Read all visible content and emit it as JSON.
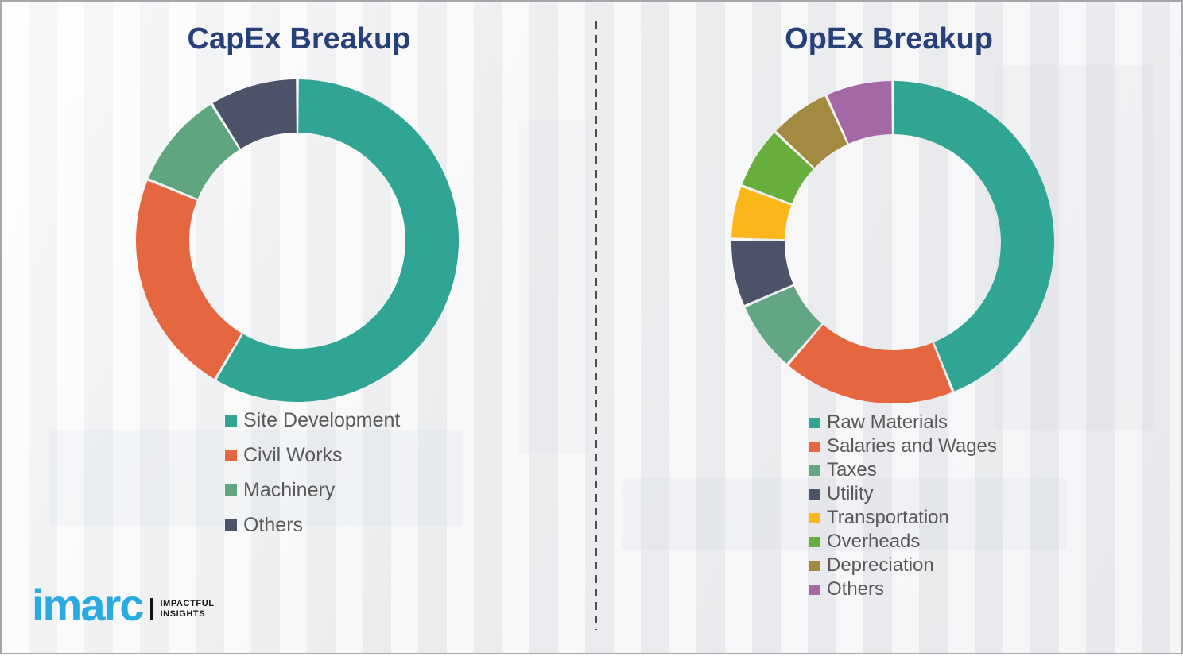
{
  "colors": {
    "background": "#f0f0f1",
    "frame_border": "#a6a6aa",
    "title_text": "#27407a",
    "legend_text": "#595959",
    "divider": "#4d4d4d",
    "brand_blue": "#29aae1",
    "tagline_black": "#1c1c1c"
  },
  "logo": {
    "brand": "imarc",
    "tagline_line1": "IMPACTFUL",
    "tagline_line2": "INSIGHTS"
  },
  "chart_data": [
    {
      "type": "pie",
      "subtype": "donut",
      "title": "CapEx Breakup",
      "labels": [
        "Site Development",
        "Civil Works",
        "Machinery",
        "Others"
      ],
      "values": [
        58.5,
        22.7,
        9.9,
        8.9
      ],
      "colors": [
        "#30a594",
        "#e5673f",
        "#5fa57d",
        "#4c5268"
      ],
      "start_angle_deg": 0,
      "direction": "clockwise",
      "inner_radius_ratio": 0.67,
      "slice_gap_color": "#f5f5f5",
      "legend_position": "below-left",
      "data_labels_shown": false
    },
    {
      "type": "pie",
      "subtype": "donut",
      "title": "OpEx Breakup",
      "labels": [
        "Raw Materials",
        "Salaries and Wages",
        "Taxes",
        "Utility",
        "Transportation",
        "Overheads",
        "Depreciation",
        "Others"
      ],
      "values": [
        43.9,
        17.4,
        7.2,
        6.8,
        5.4,
        6.3,
        6.2,
        6.8
      ],
      "colors": [
        "#30a594",
        "#e5673f",
        "#62a683",
        "#4c5268",
        "#fbb61c",
        "#68ae3c",
        "#a38a40",
        "#a468a5"
      ],
      "start_angle_deg": 0,
      "direction": "clockwise",
      "inner_radius_ratio": 0.67,
      "slice_gap_color": "#f5f5f5",
      "legend_position": "below-left",
      "data_labels_shown": false
    }
  ]
}
